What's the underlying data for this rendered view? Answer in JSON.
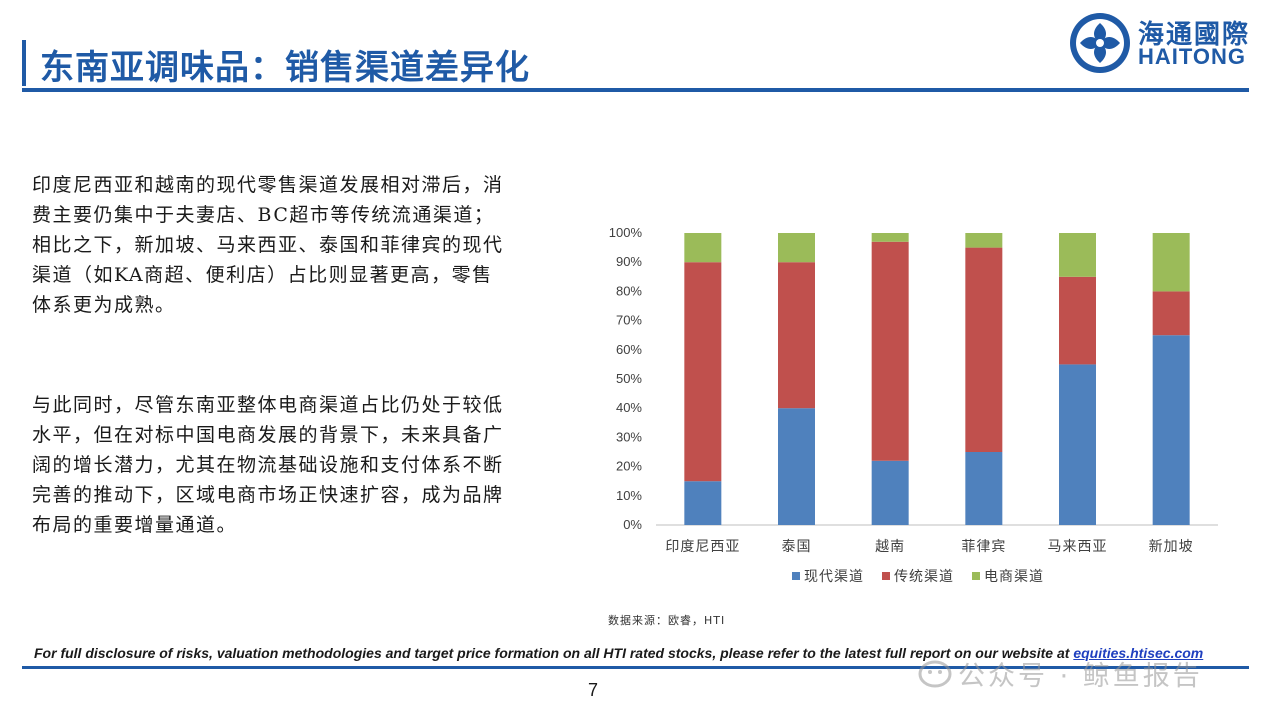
{
  "header": {
    "title": "东南亚调味品：销售渠道差异化",
    "logo_cn": "海通國際",
    "logo_en": "HAITONG"
  },
  "body": {
    "paragraph1": "印度尼西亚和越南的现代零售渠道发展相对滞后，消费主要仍集中于夫妻店、BC超市等传统流通渠道；相比之下，新加坡、马来西亚、泰国和菲律宾的现代渠道（如KA商超、便利店）占比则显著更高，零售体系更为成熟。",
    "paragraph2": "与此同时，尽管东南亚整体电商渠道占比仍处于较低水平，但在对标中国电商发展的背景下，未来具备广阔的增长潜力，尤其在物流基础设施和支付体系不断完善的推动下，区域电商市场正快速扩容，成为品牌布局的重要增量通道。"
  },
  "chart_data": {
    "type": "bar",
    "stacked": true,
    "categories": [
      "印度尼西亚",
      "泰国",
      "越南",
      "菲律宾",
      "马来西亚",
      "新加坡"
    ],
    "series": [
      {
        "name": "现代渠道",
        "color": "#4f81bd",
        "values": [
          15,
          40,
          22,
          25,
          55,
          65
        ]
      },
      {
        "name": "传统渠道",
        "color": "#c0504d",
        "values": [
          75,
          50,
          75,
          70,
          30,
          15
        ]
      },
      {
        "name": "电商渠道",
        "color": "#9bbb59",
        "values": [
          10,
          10,
          3,
          5,
          15,
          20
        ]
      }
    ],
    "y_ticks": [
      "0%",
      "10%",
      "20%",
      "30%",
      "40%",
      "50%",
      "60%",
      "70%",
      "80%",
      "90%",
      "100%"
    ],
    "ylim": [
      0,
      100
    ],
    "legend_position": "bottom",
    "grid": false
  },
  "source": "数据来源：欧睿，HTI",
  "footer": {
    "disclosure": "For full disclosure of risks, valuation methodologies and target price formation on all HTI rated stocks, please refer to the latest full report on our website at ",
    "link": "equities.htisec.com",
    "page_number": "7",
    "watermark": "公众号 · 鲸鱼报告"
  }
}
